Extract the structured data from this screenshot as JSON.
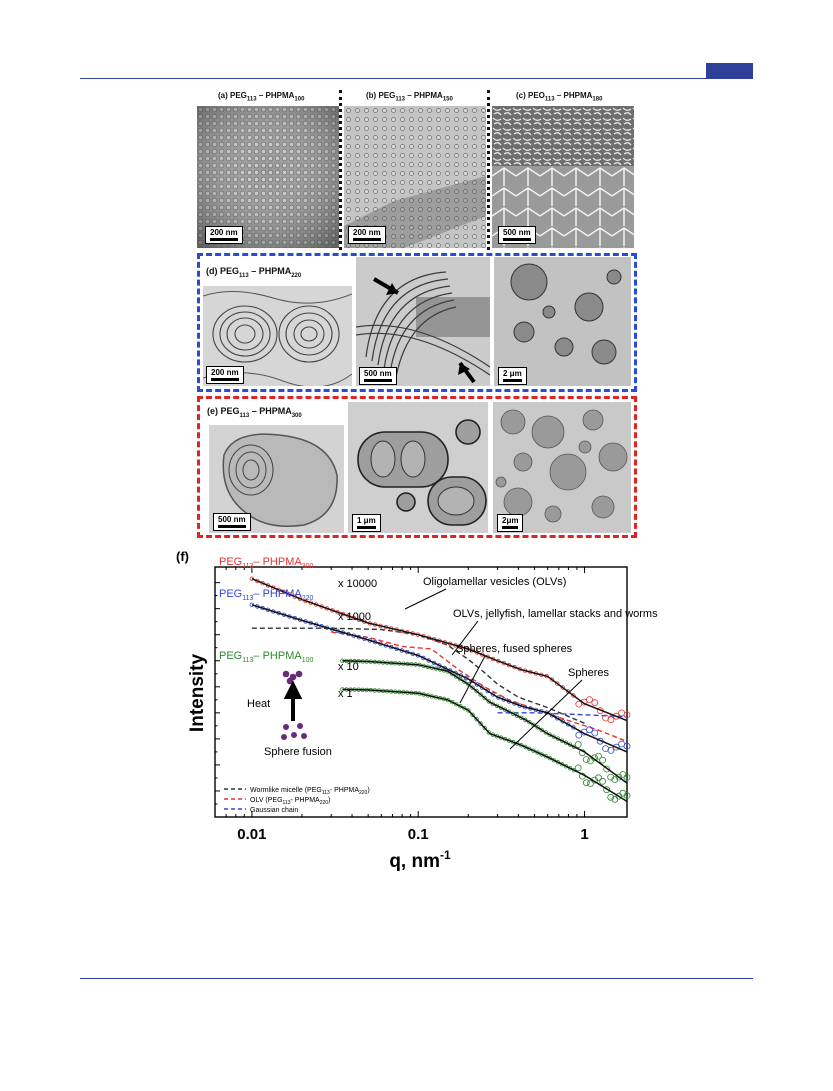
{
  "top_row": {
    "a": {
      "label_pre": "(a) PEG",
      "label_sub1": "113",
      "label_mid": " – PHPMA",
      "label_sub2": "100",
      "scale": "200 nm"
    },
    "b": {
      "label_pre": "(b) PEG",
      "label_sub1": "113",
      "label_mid": " – PHPMA",
      "label_sub2": "150",
      "scale": "200 nm"
    },
    "c": {
      "label_pre": "(c) PEO",
      "label_sub1": "113",
      "label_mid": " – PHPMA",
      "label_sub2": "180",
      "scale": "500 nm"
    }
  },
  "row_d": {
    "label_pre": "(d) PEG",
    "label_sub1": "113",
    "label_mid": " – PHPMA",
    "label_sub2": "220",
    "scales": [
      "200 nm",
      "500 nm",
      "2 μm"
    ]
  },
  "row_e": {
    "label_pre": "(e) PEG",
    "label_sub1": "113",
    "label_mid": " – PHPMA",
    "label_sub2": "300",
    "scales": [
      "500 nm",
      "1 μm",
      "2μm"
    ]
  },
  "chart_data": {
    "type": "scatter",
    "panel_label": "(f)",
    "xlabel": "q, nm",
    "xlabel_sup": "-1",
    "ylabel": "Intensity",
    "x_scale": "log",
    "xlim": [
      0.006,
      1.8
    ],
    "x_ticks": [
      {
        "value": 0.01,
        "label": "0.01"
      },
      {
        "value": 0.1,
        "label": "0.1"
      },
      {
        "value": 1,
        "label": "1"
      }
    ],
    "y_scale": "log",
    "series": [
      {
        "name_pre": "PEG",
        "name_sub1": "113",
        "name_mid": "– PHPMA",
        "name_sub2": "300",
        "multiplier": "x 10000",
        "color": "#e8322e",
        "q": [
          0.01,
          0.02,
          0.05,
          0.1,
          0.2,
          0.3,
          0.42,
          0.6,
          1.0,
          1.8
        ],
        "level": [
          9.15,
          8.35,
          7.45,
          7.0,
          6.45,
          6.0,
          5.65,
          5.4,
          4.35,
          3.7
        ]
      },
      {
        "name_pre": "PEG",
        "name_sub1": "113",
        "name_mid": "– PHPMA",
        "name_sub2": "220",
        "multiplier": "x 1000",
        "color": "#2f49d3",
        "q": [
          0.01,
          0.02,
          0.05,
          0.1,
          0.2,
          0.3,
          0.42,
          0.6,
          1.0,
          1.8
        ],
        "level": [
          8.15,
          7.55,
          6.8,
          6.2,
          5.3,
          4.6,
          4.25,
          4.0,
          3.2,
          2.5
        ]
      },
      {
        "name_pre": "PEG",
        "name_sub1": "113",
        "name_mid": "– PHPMA",
        "name_sub2": "100",
        "multiplier": "x 10",
        "color": "#2c8a2c",
        "q": [
          0.035,
          0.05,
          0.1,
          0.15,
          0.2,
          0.27,
          0.35,
          0.45,
          0.6,
          1.0,
          1.8
        ],
        "level": [
          6.0,
          5.97,
          5.85,
          5.6,
          5.1,
          4.4,
          4.05,
          3.7,
          3.2,
          2.5,
          1.3
        ]
      },
      {
        "multiplier": "x 1",
        "color": "#2c8a2c",
        "q": [
          0.035,
          0.05,
          0.1,
          0.15,
          0.2,
          0.27,
          0.33,
          0.42,
          0.6,
          1.0,
          1.8
        ],
        "level": [
          4.9,
          4.88,
          4.75,
          4.5,
          4.1,
          3.2,
          3.0,
          2.75,
          2.3,
          1.6,
          0.6
        ]
      }
    ],
    "model_lines": [
      {
        "name_pre": "Wormlike micelle (PEG",
        "name_sub1": "113",
        "name_mid": "- PHPMA",
        "name_sub2": "220",
        "name_post": ")",
        "color": "#333333",
        "q": [
          0.01,
          0.03,
          0.06,
          0.1,
          0.15,
          0.2,
          0.25,
          0.3,
          0.4,
          0.6,
          1.0
        ],
        "level": [
          7.25,
          7.25,
          7.2,
          7.0,
          6.6,
          6.05,
          5.55,
          5.1,
          4.6,
          4.2,
          3.6
        ]
      },
      {
        "name_pre": "OLV (PEG",
        "name_sub1": "113",
        "name_mid": "- PHPMA",
        "name_sub2": "220",
        "name_post": ")",
        "color": "#e8322e",
        "q": [
          0.03,
          0.05,
          0.08,
          0.12,
          0.18,
          0.25,
          0.35,
          0.5,
          0.8,
          1.2,
          1.8
        ],
        "level": [
          7.1,
          6.9,
          6.55,
          6.45,
          5.6,
          5.0,
          4.5,
          4.15,
          3.7,
          3.35,
          2.9
        ]
      },
      {
        "name": "Gaussian chain",
        "color": "#2f49d3",
        "q": [
          0.3,
          0.5,
          0.8,
          1.2,
          1.8
        ],
        "level": [
          4.0,
          4.0,
          3.95,
          3.9,
          3.85
        ]
      }
    ],
    "annotations": [
      "Oligolamellar vesicles (OLVs)",
      "OLVs, jellyfish, lamellar stacks and worms",
      "Spheres, fused spheres",
      "Spheres"
    ],
    "inset": {
      "top_label": "Heat",
      "bottom_label": "Sphere fusion"
    }
  }
}
